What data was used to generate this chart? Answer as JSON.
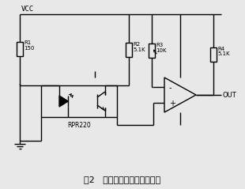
{
  "title": "图2   红外光电对管传感器电路",
  "title_fontsize": 8,
  "bg_color": "#e8e8e8",
  "line_color": "#000000",
  "line_width": 1.0,
  "vcc_label": "VCC",
  "r1_label": "R1\n150",
  "r2_label": "R2\n5.1K",
  "r3_label": "R3\n10K",
  "r4_label": "R4\n5.1K",
  "rpr_label": "RPR220",
  "out_label": "OUT"
}
